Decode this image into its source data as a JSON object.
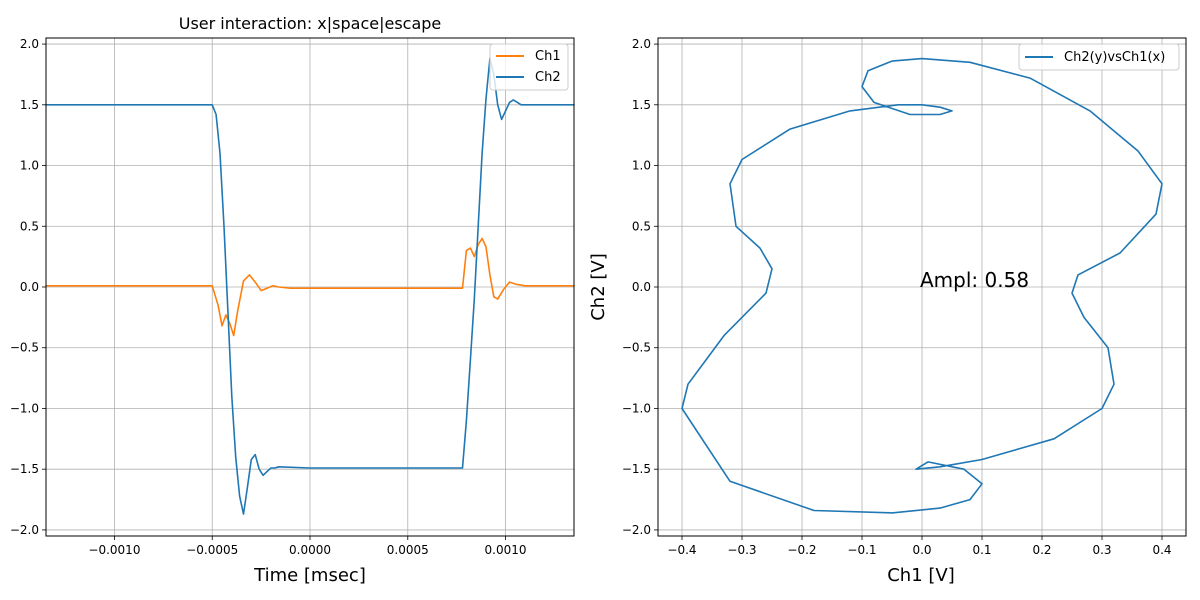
{
  "chart_data": [
    {
      "type": "line",
      "title": "User interaction: x|space|escape",
      "xlabel": "Time [msec]",
      "ylabel": "",
      "xlim": [
        -0.00135,
        0.00135
      ],
      "ylim": [
        -2.05,
        2.05
      ],
      "xticks": [
        -0.001,
        -0.0005,
        0.0,
        0.0005,
        0.001
      ],
      "xtick_labels": [
        "−0.0010",
        "−0.0005",
        "0.0000",
        "0.0005",
        "0.0010"
      ],
      "yticks": [
        -2.0,
        -1.5,
        -1.0,
        -0.5,
        0.0,
        0.5,
        1.0,
        1.5,
        2.0
      ],
      "ytick_labels": [
        "−2.0",
        "−1.5",
        "−1.0",
        "−0.5",
        "0.0",
        "0.5",
        "1.0",
        "1.5",
        "2.0"
      ],
      "grid": true,
      "legend_position": "top-right",
      "series": [
        {
          "name": "Ch1",
          "color": "#ff7f0e",
          "x": [
            -0.00135,
            -0.0005,
            -0.00047,
            -0.00045,
            -0.00043,
            -0.00041,
            -0.00039,
            -0.00037,
            -0.00034,
            -0.00031,
            -0.00028,
            -0.00025,
            -0.00022,
            -0.00019,
            -0.00016,
            -0.0001,
            0.0,
            0.0004,
            0.00078,
            0.00079,
            0.0008,
            0.00082,
            0.00084,
            0.00086,
            0.00088,
            0.0009,
            0.00092,
            0.00094,
            0.00096,
            0.00099,
            0.00102,
            0.00106,
            0.0011,
            0.00135
          ],
          "y": [
            0.01,
            0.01,
            -0.15,
            -0.32,
            -0.23,
            -0.3,
            -0.4,
            -0.2,
            0.05,
            0.1,
            0.04,
            -0.03,
            -0.01,
            0.01,
            0.0,
            -0.01,
            -0.01,
            -0.01,
            -0.01,
            0.15,
            0.3,
            0.32,
            0.25,
            0.35,
            0.4,
            0.33,
            0.1,
            -0.08,
            -0.1,
            -0.02,
            0.04,
            0.02,
            0.01,
            0.01
          ]
        },
        {
          "name": "Ch2",
          "color": "#1f77b4",
          "x": [
            -0.00135,
            -0.0005,
            -0.00048,
            -0.00046,
            -0.00044,
            -0.00042,
            -0.0004,
            -0.00038,
            -0.00036,
            -0.00034,
            -0.00032,
            -0.0003,
            -0.00028,
            -0.00026,
            -0.00024,
            -0.00022,
            -0.0002,
            -0.00018,
            -0.00016,
            0.0,
            0.0004,
            0.00078,
            0.0008,
            0.00082,
            0.00084,
            0.00086,
            0.00088,
            0.0009,
            0.00092,
            0.00094,
            0.00096,
            0.00098,
            0.001,
            0.00102,
            0.00104,
            0.00108,
            0.00135
          ],
          "y": [
            1.5,
            1.5,
            1.42,
            1.1,
            0.5,
            -0.2,
            -0.9,
            -1.4,
            -1.72,
            -1.87,
            -1.65,
            -1.42,
            -1.38,
            -1.5,
            -1.55,
            -1.52,
            -1.49,
            -1.49,
            -1.48,
            -1.49,
            -1.49,
            -1.49,
            -1.1,
            -0.6,
            -0.1,
            0.5,
            1.1,
            1.55,
            1.88,
            1.75,
            1.5,
            1.38,
            1.45,
            1.52,
            1.54,
            1.5,
            1.5
          ]
        }
      ]
    },
    {
      "type": "line",
      "title": "",
      "xlabel": "Ch1 [V]",
      "ylabel": "Ch2 [V]",
      "xlim": [
        -0.44,
        0.44
      ],
      "ylim": [
        -2.05,
        2.05
      ],
      "xticks": [
        -0.4,
        -0.3,
        -0.2,
        -0.1,
        0.0,
        0.1,
        0.2,
        0.3,
        0.4
      ],
      "xtick_labels": [
        "−0.4",
        "−0.3",
        "−0.2",
        "−0.1",
        "0.0",
        "0.1",
        "0.2",
        "0.3",
        "0.4"
      ],
      "yticks": [
        -2.0,
        -1.5,
        -1.0,
        -0.5,
        0.0,
        0.5,
        1.0,
        1.5,
        2.0
      ],
      "ytick_labels": [
        "−2.0",
        "−1.5",
        "−1.0",
        "−0.5",
        "0.0",
        "0.5",
        "1.0",
        "1.5",
        "2.0"
      ],
      "grid": true,
      "legend_position": "top-right",
      "annotation": "Ampl: 0.58",
      "series": [
        {
          "name": "Ch2(y)vsCh1(x)",
          "color": "#1f77b4",
          "x": [
            0.0,
            0.03,
            0.05,
            0.03,
            -0.02,
            -0.08,
            -0.1,
            -0.09,
            -0.05,
            0.0,
            0.08,
            0.18,
            0.28,
            0.36,
            0.4,
            0.39,
            0.33,
            0.26,
            0.25,
            0.27,
            0.31,
            0.32,
            0.3,
            0.22,
            0.1,
            0.03,
            -0.01,
            0.01,
            0.07,
            0.1,
            0.08,
            0.03,
            -0.05,
            -0.18,
            -0.32,
            -0.4,
            -0.39,
            -0.33,
            -0.26,
            -0.25,
            -0.27,
            -0.31,
            -0.32,
            -0.3,
            -0.22,
            -0.12,
            -0.04,
            0.0
          ],
          "y": [
            1.5,
            1.48,
            1.45,
            1.42,
            1.42,
            1.52,
            1.65,
            1.78,
            1.86,
            1.88,
            1.85,
            1.72,
            1.45,
            1.12,
            0.85,
            0.6,
            0.28,
            0.1,
            -0.05,
            -0.25,
            -0.5,
            -0.8,
            -1.0,
            -1.25,
            -1.42,
            -1.48,
            -1.5,
            -1.44,
            -1.5,
            -1.62,
            -1.75,
            -1.82,
            -1.86,
            -1.84,
            -1.6,
            -1.0,
            -0.8,
            -0.4,
            -0.05,
            0.15,
            0.32,
            0.5,
            0.85,
            1.05,
            1.3,
            1.45,
            1.5,
            1.5
          ]
        }
      ]
    }
  ]
}
